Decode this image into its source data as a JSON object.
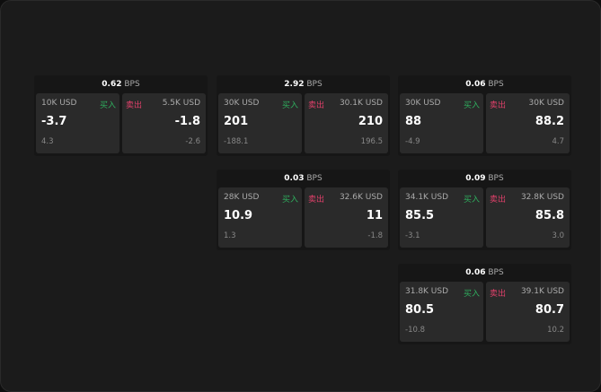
{
  "labels": {
    "buy": "买入",
    "sell": "卖出",
    "bps_unit": "BPS"
  },
  "colors": {
    "buy": "#2fae5e",
    "sell": "#e0406a"
  },
  "cards": [
    {
      "bps": "0.62",
      "buy": {
        "size": "10K USD",
        "price": "-3.7",
        "change": "4.3"
      },
      "sell": {
        "size": "5.5K USD",
        "price": "-1.8",
        "change": "-2.6"
      }
    },
    {
      "bps": "2.92",
      "buy": {
        "size": "30K USD",
        "price": "201",
        "change": "-188.1"
      },
      "sell": {
        "size": "30.1K USD",
        "price": "210",
        "change": "196.5"
      }
    },
    {
      "bps": "0.06",
      "buy": {
        "size": "30K USD",
        "price": "88",
        "change": "-4.9"
      },
      "sell": {
        "size": "30K USD",
        "price": "88.2",
        "change": "4.7"
      }
    },
    {
      "bps": "0.03",
      "buy": {
        "size": "28K USD",
        "price": "10.9",
        "change": "1.3"
      },
      "sell": {
        "size": "32.6K USD",
        "price": "11",
        "change": "-1.8"
      }
    },
    {
      "bps": "0.09",
      "buy": {
        "size": "34.1K USD",
        "price": "85.5",
        "change": "-3.1"
      },
      "sell": {
        "size": "32.8K USD",
        "price": "85.8",
        "change": "3.0"
      }
    },
    {
      "bps": "0.06",
      "buy": {
        "size": "31.8K USD",
        "price": "80.5",
        "change": "-10.8"
      },
      "sell": {
        "size": "39.1K USD",
        "price": "80.7",
        "change": "10.2"
      }
    }
  ]
}
